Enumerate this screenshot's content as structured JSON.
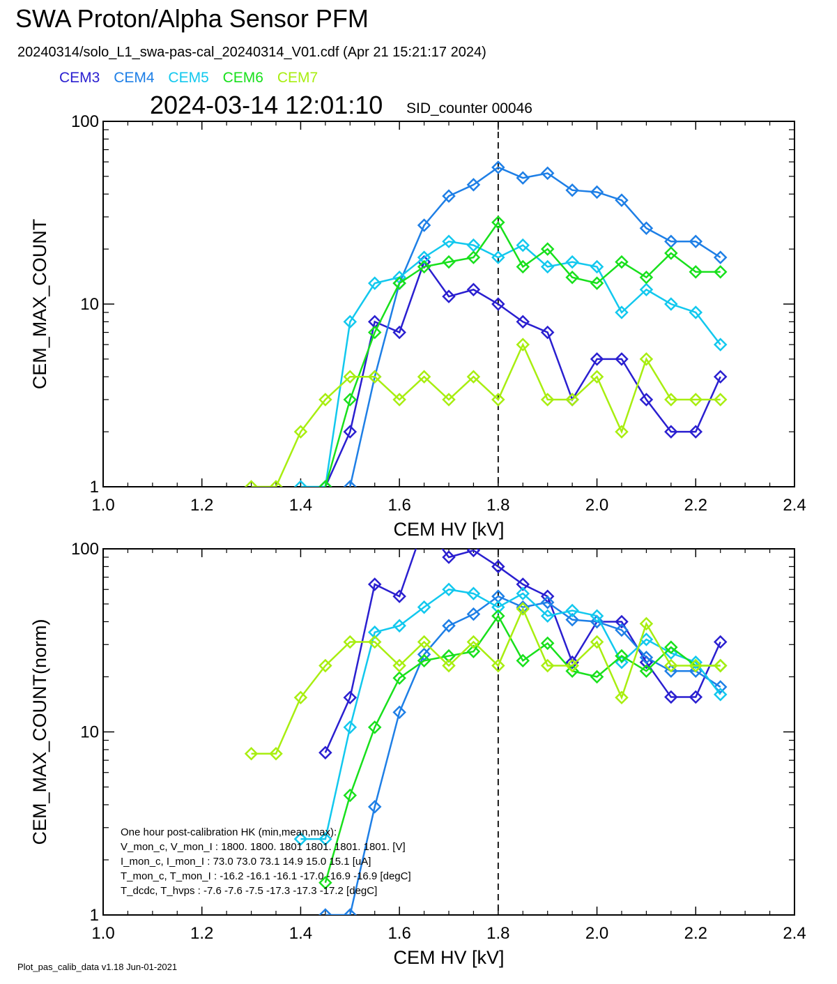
{
  "header": {
    "title": "SWA Proton/Alpha Sensor PFM",
    "file_line": "20240314/solo_L1_swa-pas-cal_20240314_V01.cdf  (Apr 21 15:21:17 2024)",
    "timestamp": "2024-03-14 12:01:10",
    "sid": "SID_counter 00046"
  },
  "legend": [
    {
      "label": "CEM3",
      "color": "#2a1fd0"
    },
    {
      "label": "CEM4",
      "color": "#1e7fe6"
    },
    {
      "label": "CEM5",
      "color": "#12c8ee"
    },
    {
      "label": "CEM6",
      "color": "#18e01c"
    },
    {
      "label": "CEM7",
      "color": "#a8ee10"
    }
  ],
  "hk": {
    "lines": [
      "One hour post-calibration HK (min,mean,max):",
      "V_mon_c, V_mon_I :    1800.  1800.  1801       1801.  1801.  1801. [V]",
      "I_mon_c,  I_mon_I :      73.0   73.0   73.1         14.9   15.0   15.1  [uA]",
      "T_mon_c, T_mon_I :   -16.2  -16.1  -16.1        -17.0  -16.9  -16.9  [degC]",
      "T_dcdc,    T_hvps :      -7.6   -7.6   -7.5        -17.3  -17.3  -17.2  [degC]"
    ]
  },
  "footer": "Plot_pas_calib_data v1.18 Jun-01-2021",
  "chart_data": [
    {
      "type": "line",
      "ylabel": "CEM_MAX_COUNT",
      "xlabel": "CEM HV [kV]",
      "xlim": [
        1.0,
        2.4
      ],
      "ylim": [
        1,
        100
      ],
      "yscale": "log",
      "xticks": [
        "1.0",
        "1.2",
        "1.4",
        "1.6",
        "1.8",
        "2.0",
        "2.2",
        "2.4"
      ],
      "yticks": [
        "1",
        "10",
        "100"
      ],
      "vline": 1.8,
      "x": [
        1.3,
        1.35,
        1.4,
        1.45,
        1.5,
        1.55,
        1.6,
        1.65,
        1.7,
        1.75,
        1.8,
        1.85,
        1.9,
        1.95,
        2.0,
        2.05,
        2.1,
        2.15,
        2.2,
        2.25
      ],
      "series": [
        {
          "name": "CEM3",
          "values": [
            null,
            null,
            null,
            1,
            2,
            8,
            7,
            17,
            11,
            12,
            10,
            8,
            7,
            3,
            5,
            5,
            3,
            2,
            2,
            4
          ]
        },
        {
          "name": "CEM4",
          "values": [
            null,
            null,
            null,
            null,
            1,
            4,
            13,
            27,
            39,
            45,
            56,
            49,
            52,
            42,
            41,
            37,
            26,
            22,
            22,
            18
          ]
        },
        {
          "name": "CEM5",
          "values": [
            null,
            null,
            1,
            1,
            8,
            13,
            14,
            18,
            22,
            21,
            18,
            21,
            16,
            17,
            16,
            9,
            12,
            10,
            9,
            6
          ]
        },
        {
          "name": "CEM6",
          "values": [
            null,
            null,
            null,
            1,
            3,
            7,
            13,
            16,
            17,
            18,
            28,
            16,
            20,
            14,
            13,
            17,
            14,
            19,
            15,
            15
          ]
        },
        {
          "name": "CEM7",
          "values": [
            1,
            1,
            2,
            3,
            4,
            4,
            3,
            4,
            3,
            4,
            3,
            6,
            3,
            3,
            4,
            2,
            5,
            3,
            3,
            3
          ]
        }
      ]
    },
    {
      "type": "line",
      "ylabel": "CEM_MAX_COUNT(norm)",
      "xlabel": "CEM HV [kV]",
      "xlim": [
        1.0,
        2.4
      ],
      "ylim": [
        1,
        100
      ],
      "yscale": "log",
      "xticks": [
        "1.0",
        "1.2",
        "1.4",
        "1.6",
        "1.8",
        "2.0",
        "2.2",
        "2.4"
      ],
      "yticks": [
        "1",
        "10",
        "100"
      ],
      "vline": 1.8,
      "x": [
        1.3,
        1.35,
        1.4,
        1.45,
        1.5,
        1.55,
        1.6,
        1.65,
        1.7,
        1.75,
        1.8,
        1.85,
        1.9,
        1.95,
        2.0,
        2.05,
        2.1,
        2.15,
        2.2,
        2.25
      ],
      "series": [
        {
          "name": "CEM3",
          "values": [
            null,
            null,
            null,
            7.7,
            15.4,
            64,
            55,
            135,
            90,
            98,
            80,
            64,
            55,
            24,
            40,
            40,
            24,
            15.5,
            15.5,
            31
          ]
        },
        {
          "name": "CEM4",
          "values": [
            null,
            null,
            null,
            1.0,
            1.0,
            3.9,
            12.8,
            26.5,
            38,
            44,
            55,
            48,
            51,
            41,
            40,
            36,
            25.5,
            21.5,
            21.5,
            17.6
          ]
        },
        {
          "name": "CEM5",
          "values": [
            null,
            null,
            2.6,
            2.6,
            10.6,
            35,
            38,
            48,
            60,
            57,
            48,
            57,
            43,
            46,
            43,
            24,
            32,
            27,
            24,
            16
          ]
        },
        {
          "name": "CEM6",
          "values": [
            null,
            null,
            null,
            1.5,
            4.5,
            10.6,
            19.7,
            24.5,
            26,
            27.5,
            43,
            24.5,
            30.5,
            21.5,
            20,
            26,
            21.5,
            29,
            23,
            23
          ]
        },
        {
          "name": "CEM7",
          "values": [
            7.6,
            7.6,
            15.4,
            23,
            31,
            31,
            23,
            31,
            23,
            31,
            23,
            47,
            23,
            23,
            31,
            15.4,
            39,
            23,
            23,
            23
          ]
        }
      ]
    }
  ]
}
